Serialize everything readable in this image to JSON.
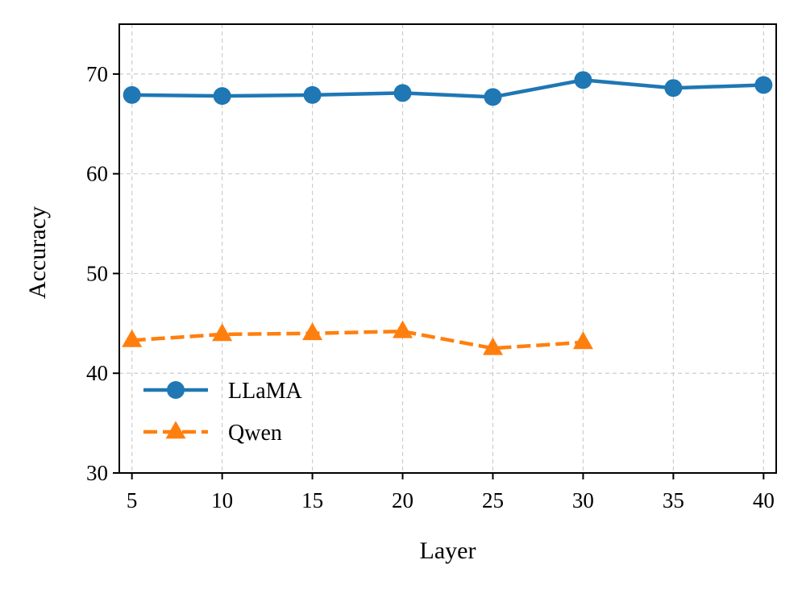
{
  "chart_data": {
    "type": "line",
    "xlabel": "Layer",
    "ylabel": "Accuracy",
    "x": [
      5,
      10,
      15,
      20,
      25,
      30,
      35,
      40
    ],
    "x_ticks": [
      5,
      10,
      15,
      20,
      25,
      30,
      35,
      40
    ],
    "y_ticks": [
      30,
      40,
      50,
      60,
      70
    ],
    "xlim": [
      4.3,
      40.7
    ],
    "ylim": [
      30,
      75
    ],
    "grid": true,
    "legend_position": "lower-left",
    "series": [
      {
        "name": "LLaMA",
        "marker": "circle",
        "line_style": "solid",
        "color": "#1f77b4",
        "x": [
          5,
          10,
          15,
          20,
          25,
          30,
          35,
          40
        ],
        "values": [
          67.9,
          67.8,
          67.9,
          68.1,
          67.7,
          69.4,
          68.6,
          68.9
        ]
      },
      {
        "name": "Qwen",
        "marker": "triangle",
        "line_style": "dashed",
        "color": "#ff7f0e",
        "x": [
          5,
          10,
          15,
          20,
          25,
          30
        ],
        "values": [
          43.3,
          43.9,
          44.0,
          44.2,
          42.5,
          43.1
        ]
      }
    ]
  }
}
